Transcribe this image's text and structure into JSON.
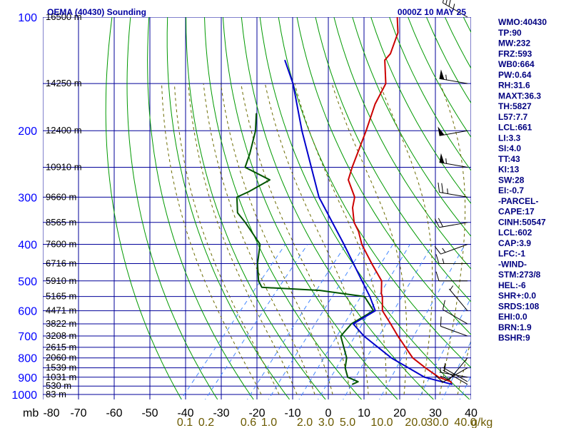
{
  "header": {
    "station": "OEMA (40430) Sounding",
    "time": "0000Z 10 MAY 25"
  },
  "colors": {
    "isobar": "#000099",
    "isotherm": "#000099",
    "dry_adiabat": "#009900",
    "moist_adiabat": "#6b6b00",
    "mixing_ratio": "#4488ff",
    "temperature": "#cc0000",
    "dewpoint": "#005500",
    "parcel": "#0000cc",
    "index_text": "#000080",
    "title_text": "#0000a0"
  },
  "indices": [
    "WMO:40430",
    "TP:90",
    "MW:232",
    "FRZ:593",
    "WB0:664",
    "PW:0.64",
    "RH:31.6",
    "MAXT:36.3",
    "TH:5827",
    "L57:7.7",
    "LCL:661",
    "LI:3.3",
    "SI:4.0",
    "TT:43",
    "KI:13",
    "SW:28",
    "EI:-0.7",
    "-PARCEL-",
    "CAPE:17",
    "CINH:50547",
    "LCL:602",
    "CAP:3.9",
    "LFC:-1",
    "-WIND-",
    "STM:273/8",
    "HEL:-6",
    "SHR+:0.0",
    "SRDS:108",
    "EHI:0.0",
    "BRN:1.9",
    "BSHR:9"
  ],
  "chart_data": {
    "type": "skew-t",
    "title": "OEMA (40430) Sounding",
    "pressure_unit": "mb",
    "y_scale": "log",
    "ylim": [
      1000,
      100
    ],
    "xlim": [
      -80,
      40
    ],
    "pressure_ticks": [
      100,
      200,
      300,
      400,
      500,
      600,
      700,
      800,
      900,
      1000
    ],
    "temperature_ticks": [
      -80,
      -70,
      -60,
      -50,
      -40,
      -30,
      -20,
      -10,
      0,
      10,
      20,
      30,
      40
    ],
    "mixing_ratio_labels": [
      "0.1",
      "0.2",
      "0.6",
      "1.0",
      "2.0",
      "3.0",
      "5.0",
      "10.0",
      "20.0",
      "30.0",
      "40.0"
    ],
    "mixing_ratio_unit": "g/kg",
    "height_labels": [
      {
        "p": 100,
        "label": "16500 m"
      },
      {
        "p": 150,
        "label": "14250 m"
      },
      {
        "p": 200,
        "label": "12400 m"
      },
      {
        "p": 250,
        "label": "10910 m"
      },
      {
        "p": 300,
        "label": "9660 m"
      },
      {
        "p": 350,
        "label": "8565 m"
      },
      {
        "p": 400,
        "label": "7600 m"
      },
      {
        "p": 450,
        "label": "6716 m"
      },
      {
        "p": 500,
        "label": "5910 m"
      },
      {
        "p": 550,
        "label": "5165 m"
      },
      {
        "p": 600,
        "label": "4471 m"
      },
      {
        "p": 650,
        "label": "3822 m"
      },
      {
        "p": 700,
        "label": "3208 m"
      },
      {
        "p": 750,
        "label": "2615 m"
      },
      {
        "p": 800,
        "label": "2060 m"
      },
      {
        "p": 850,
        "label": "1539 m"
      },
      {
        "p": 900,
        "label": "1031 m"
      },
      {
        "p": 950,
        "label": "530 m"
      },
      {
        "p": 1000,
        "label": "83 m"
      }
    ],
    "series": [
      {
        "key": "temperature",
        "points": [
          [
            940,
            30.8
          ],
          [
            925,
            30.0
          ],
          [
            900,
            25.5
          ],
          [
            850,
            19.5
          ],
          [
            800,
            13.5
          ],
          [
            700,
            4.0
          ],
          [
            650,
            -1.0
          ],
          [
            600,
            -6.5
          ],
          [
            550,
            -10.0
          ],
          [
            540,
            -11.0
          ],
          [
            500,
            -14.0
          ],
          [
            450,
            -21.0
          ],
          [
            400,
            -28.5
          ],
          [
            370,
            -32.5
          ],
          [
            350,
            -36.0
          ],
          [
            320,
            -40.0
          ],
          [
            300,
            -42.0
          ],
          [
            270,
            -48.0
          ],
          [
            250,
            -50.0
          ],
          [
            200,
            -55.0
          ],
          [
            170,
            -59.0
          ],
          [
            150,
            -61.0
          ],
          [
            130,
            -67.0
          ],
          [
            125,
            -67.0
          ],
          [
            110,
            -70.0
          ],
          [
            100,
            -74.0
          ]
        ]
      },
      {
        "key": "dewpoint",
        "points": [
          [
            940,
            3.0
          ],
          [
            925,
            4.0
          ],
          [
            900,
            0.0
          ],
          [
            850,
            -3.0
          ],
          [
            800,
            -5.0
          ],
          [
            700,
            -12.0
          ],
          [
            650,
            -12.0
          ],
          [
            600,
            -9.0
          ],
          [
            550,
            -15.0
          ],
          [
            530,
            -29.0
          ],
          [
            520,
            -46.0
          ],
          [
            500,
            -48.5
          ],
          [
            450,
            -53.0
          ],
          [
            400,
            -57.0
          ],
          [
            350,
            -66.5
          ],
          [
            330,
            -71.0
          ],
          [
            300,
            -75.0
          ],
          [
            290,
            -73.0
          ],
          [
            270,
            -70.0
          ],
          [
            250,
            -80.0
          ],
          [
            230,
            -82.0
          ],
          [
            200,
            -86.0
          ],
          [
            180,
            -90.0
          ]
        ]
      },
      {
        "key": "parcel",
        "points": [
          [
            940,
            31.0
          ],
          [
            900,
            21.5
          ],
          [
            800,
            7.5
          ],
          [
            700,
            -5.5
          ],
          [
            650,
            -11.5
          ],
          [
            600,
            -8.5
          ],
          [
            550,
            -13.5
          ],
          [
            500,
            -19.5
          ],
          [
            400,
            -33.5
          ],
          [
            300,
            -52.0
          ],
          [
            200,
            -73.0
          ],
          [
            150,
            -87.0
          ],
          [
            130,
            -95.0
          ]
        ]
      }
    ],
    "wind_barbs": [
      {
        "p": 940,
        "dir": 300,
        "spd": 5
      },
      {
        "p": 925,
        "dir": 300,
        "spd": 5
      },
      {
        "p": 900,
        "dir": 280,
        "spd": 5
      },
      {
        "p": 850,
        "dir": 240,
        "spd": 10
      },
      {
        "p": 800,
        "dir": 220,
        "spd": 10
      },
      {
        "p": 700,
        "dir": 290,
        "spd": 10
      },
      {
        "p": 650,
        "dir": 300,
        "spd": 10
      },
      {
        "p": 600,
        "dir": 320,
        "spd": 5
      },
      {
        "p": 500,
        "dir": 270,
        "spd": 10
      },
      {
        "p": 450,
        "dir": 270,
        "spd": 15
      },
      {
        "p": 400,
        "dir": 250,
        "spd": 15
      },
      {
        "p": 350,
        "dir": 260,
        "spd": 20
      },
      {
        "p": 300,
        "dir": 280,
        "spd": 25
      },
      {
        "p": 250,
        "dir": 280,
        "spd": 55
      },
      {
        "p": 200,
        "dir": 260,
        "spd": 50
      },
      {
        "p": 150,
        "dir": 280,
        "spd": 55
      },
      {
        "p": 100,
        "dir": 300,
        "spd": 35
      }
    ]
  }
}
